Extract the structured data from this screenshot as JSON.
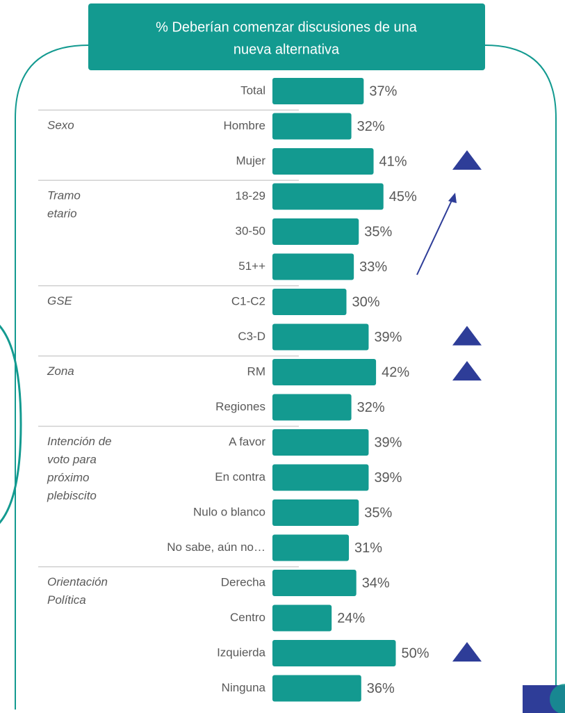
{
  "chart_data": {
    "type": "bar",
    "orientation": "horizontal",
    "title": [
      "% Deberían comenzar discusiones de una",
      "nueva alternativa"
    ],
    "color": "#139a90",
    "marker_color": "#2e3d98",
    "groups": [
      {
        "categories": [
          "Total"
        ],
        "values": [
          37
        ],
        "value_labels": [
          "37%"
        ],
        "significant_up": [
          false
        ]
      },
      {
        "label": [
          "Sexo"
        ],
        "categories": [
          "Hombre",
          "Mujer"
        ],
        "values": [
          32,
          41
        ],
        "value_labels": [
          "32%",
          "41%"
        ],
        "significant_up": [
          false,
          true
        ]
      },
      {
        "label": [
          "Tramo",
          "etario"
        ],
        "categories": [
          "18-29",
          "30-50",
          "51++"
        ],
        "values": [
          45,
          35,
          33
        ],
        "value_labels": [
          "45%",
          "35%",
          "33%"
        ],
        "significant_up": [
          false,
          false,
          false
        ]
      },
      {
        "label": [
          "GSE"
        ],
        "categories": [
          "C1-C2",
          "C3-D"
        ],
        "values": [
          30,
          39
        ],
        "value_labels": [
          "30%",
          "39%"
        ],
        "significant_up": [
          false,
          true
        ]
      },
      {
        "label": [
          "Zona"
        ],
        "categories": [
          "RM",
          "Regiones"
        ],
        "values": [
          42,
          32
        ],
        "value_labels": [
          "42%",
          "32%"
        ],
        "significant_up": [
          true,
          false
        ]
      },
      {
        "label": [
          "Intención de",
          "voto para",
          "próximo",
          "plebiscito"
        ],
        "categories": [
          "A favor",
          "En contra",
          "Nulo o blanco",
          "No sabe, aún no…"
        ],
        "values": [
          39,
          39,
          35,
          31
        ],
        "value_labels": [
          "39%",
          "39%",
          "35%",
          "31%"
        ],
        "significant_up": [
          false,
          false,
          false,
          false
        ]
      },
      {
        "label": [
          "Orientación",
          "Política"
        ],
        "categories": [
          "Derecha",
          "Centro",
          "Izquierda",
          "Ninguna"
        ],
        "values": [
          34,
          24,
          50,
          36
        ],
        "value_labels": [
          "34%",
          "24%",
          "50%",
          "36%"
        ],
        "significant_up": [
          false,
          false,
          true,
          false
        ]
      }
    ]
  }
}
